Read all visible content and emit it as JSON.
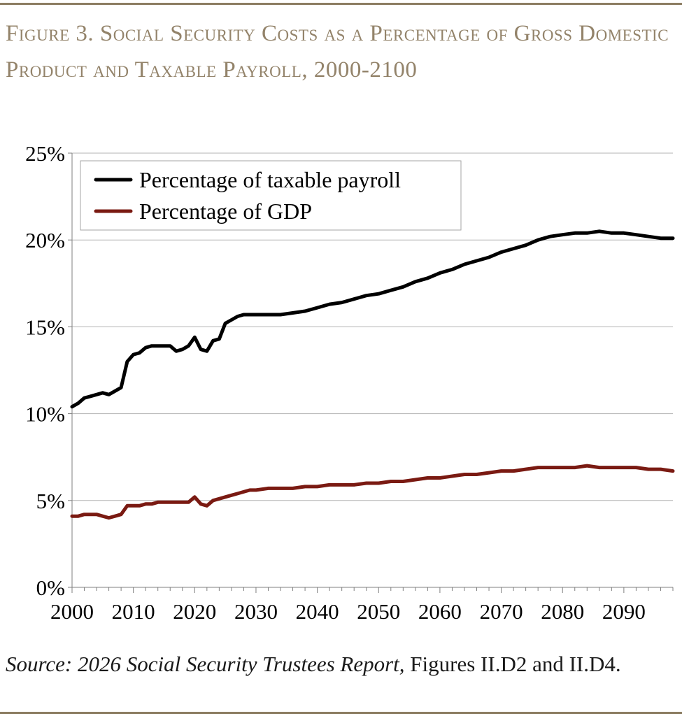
{
  "figure": {
    "title": "Figure 3. Social Security Costs as a Percentage of Gross Domestic Product and Taxable Payroll, 2000-2100",
    "source_italic": "Source: 2026 Social Security Trustees Report,",
    "source_rest": " Figures II.D2 and II.D4."
  },
  "chart_data": {
    "type": "line",
    "xlim": [
      2000,
      2098
    ],
    "ylim": [
      0,
      25
    ],
    "x_ticks": [
      "2000",
      "2010",
      "2020",
      "2030",
      "2040",
      "2050",
      "2060",
      "2070",
      "2080",
      "2090"
    ],
    "y_ticks": [
      "0%",
      "5%",
      "10%",
      "15%",
      "20%",
      "25%"
    ],
    "grid": true,
    "legend_position": "top-left",
    "series": [
      {
        "name": "Percentage of taxable payroll",
        "color": "#000000",
        "points": [
          [
            2000,
            10.4
          ],
          [
            2001,
            10.6
          ],
          [
            2002,
            10.9
          ],
          [
            2003,
            11.0
          ],
          [
            2004,
            11.1
          ],
          [
            2005,
            11.2
          ],
          [
            2006,
            11.1
          ],
          [
            2007,
            11.3
          ],
          [
            2008,
            11.5
          ],
          [
            2009,
            13.0
          ],
          [
            2010,
            13.4
          ],
          [
            2011,
            13.5
          ],
          [
            2012,
            13.8
          ],
          [
            2013,
            13.9
          ],
          [
            2014,
            13.9
          ],
          [
            2015,
            13.9
          ],
          [
            2016,
            13.9
          ],
          [
            2017,
            13.6
          ],
          [
            2018,
            13.7
          ],
          [
            2019,
            13.9
          ],
          [
            2020,
            14.4
          ],
          [
            2021,
            13.7
          ],
          [
            2022,
            13.6
          ],
          [
            2023,
            14.2
          ],
          [
            2024,
            14.3
          ],
          [
            2025,
            15.2
          ],
          [
            2026,
            15.4
          ],
          [
            2027,
            15.6
          ],
          [
            2028,
            15.7
          ],
          [
            2029,
            15.7
          ],
          [
            2030,
            15.7
          ],
          [
            2032,
            15.7
          ],
          [
            2034,
            15.7
          ],
          [
            2036,
            15.8
          ],
          [
            2038,
            15.9
          ],
          [
            2040,
            16.1
          ],
          [
            2042,
            16.3
          ],
          [
            2044,
            16.4
          ],
          [
            2046,
            16.6
          ],
          [
            2048,
            16.8
          ],
          [
            2050,
            16.9
          ],
          [
            2052,
            17.1
          ],
          [
            2054,
            17.3
          ],
          [
            2056,
            17.6
          ],
          [
            2058,
            17.8
          ],
          [
            2060,
            18.1
          ],
          [
            2062,
            18.3
          ],
          [
            2064,
            18.6
          ],
          [
            2066,
            18.8
          ],
          [
            2068,
            19.0
          ],
          [
            2070,
            19.3
          ],
          [
            2072,
            19.5
          ],
          [
            2074,
            19.7
          ],
          [
            2076,
            20.0
          ],
          [
            2078,
            20.2
          ],
          [
            2080,
            20.3
          ],
          [
            2082,
            20.4
          ],
          [
            2084,
            20.4
          ],
          [
            2086,
            20.5
          ],
          [
            2088,
            20.4
          ],
          [
            2090,
            20.4
          ],
          [
            2092,
            20.3
          ],
          [
            2094,
            20.2
          ],
          [
            2096,
            20.1
          ],
          [
            2098,
            20.1
          ]
        ]
      },
      {
        "name": "Percentage of GDP",
        "color": "#7a1a12",
        "points": [
          [
            2000,
            4.1
          ],
          [
            2001,
            4.1
          ],
          [
            2002,
            4.2
          ],
          [
            2003,
            4.2
          ],
          [
            2004,
            4.2
          ],
          [
            2005,
            4.1
          ],
          [
            2006,
            4.0
          ],
          [
            2007,
            4.1
          ],
          [
            2008,
            4.2
          ],
          [
            2009,
            4.7
          ],
          [
            2010,
            4.7
          ],
          [
            2011,
            4.7
          ],
          [
            2012,
            4.8
          ],
          [
            2013,
            4.8
          ],
          [
            2014,
            4.9
          ],
          [
            2015,
            4.9
          ],
          [
            2016,
            4.9
          ],
          [
            2017,
            4.9
          ],
          [
            2018,
            4.9
          ],
          [
            2019,
            4.9
          ],
          [
            2020,
            5.2
          ],
          [
            2021,
            4.8
          ],
          [
            2022,
            4.7
          ],
          [
            2023,
            5.0
          ],
          [
            2024,
            5.1
          ],
          [
            2025,
            5.2
          ],
          [
            2026,
            5.3
          ],
          [
            2027,
            5.4
          ],
          [
            2028,
            5.5
          ],
          [
            2029,
            5.6
          ],
          [
            2030,
            5.6
          ],
          [
            2032,
            5.7
          ],
          [
            2034,
            5.7
          ],
          [
            2036,
            5.7
          ],
          [
            2038,
            5.8
          ],
          [
            2040,
            5.8
          ],
          [
            2042,
            5.9
          ],
          [
            2044,
            5.9
          ],
          [
            2046,
            5.9
          ],
          [
            2048,
            6.0
          ],
          [
            2050,
            6.0
          ],
          [
            2052,
            6.1
          ],
          [
            2054,
            6.1
          ],
          [
            2056,
            6.2
          ],
          [
            2058,
            6.3
          ],
          [
            2060,
            6.3
          ],
          [
            2062,
            6.4
          ],
          [
            2064,
            6.5
          ],
          [
            2066,
            6.5
          ],
          [
            2068,
            6.6
          ],
          [
            2070,
            6.7
          ],
          [
            2072,
            6.7
          ],
          [
            2074,
            6.8
          ],
          [
            2076,
            6.9
          ],
          [
            2078,
            6.9
          ],
          [
            2080,
            6.9
          ],
          [
            2082,
            6.9
          ],
          [
            2084,
            7.0
          ],
          [
            2086,
            6.9
          ],
          [
            2088,
            6.9
          ],
          [
            2090,
            6.9
          ],
          [
            2092,
            6.9
          ],
          [
            2094,
            6.8
          ],
          [
            2096,
            6.8
          ],
          [
            2098,
            6.7
          ]
        ]
      }
    ]
  }
}
